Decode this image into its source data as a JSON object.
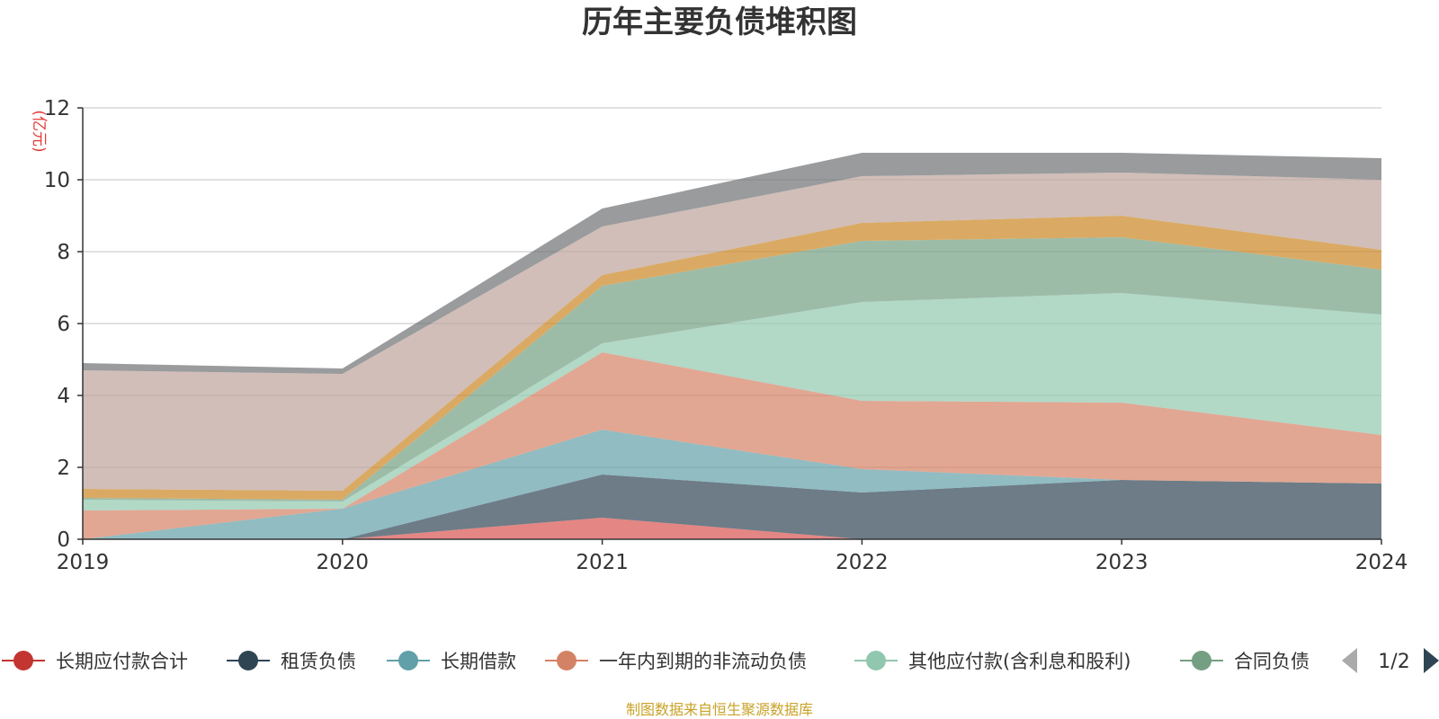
{
  "chart_data": {
    "type": "area",
    "stacked": true,
    "title": "历年主要负债堆积图",
    "unit_label": "(亿元)",
    "x": [
      "2019",
      "2020",
      "2021",
      "2022",
      "2023",
      "2024"
    ],
    "ylim": [
      0,
      12
    ],
    "yticks": [
      "0",
      "2",
      "4",
      "6",
      "8",
      "10",
      "12"
    ],
    "grid": true,
    "legend_position": "bottom",
    "series": [
      {
        "name": "长期应付款合计",
        "color": "#d9534f",
        "values": [
          0,
          0,
          0.6,
          0,
          0,
          0
        ]
      },
      {
        "name": "租赁负债",
        "color": "#2f4554",
        "values": [
          0,
          0,
          1.2,
          1.3,
          1.65,
          1.55
        ]
      },
      {
        "name": "长期借款",
        "color": "#61a0a8",
        "values": [
          0,
          0.85,
          1.25,
          0.65,
          0,
          0
        ]
      },
      {
        "name": "一年内到期的非流动负债",
        "color": "#d48265",
        "values": [
          0.8,
          0,
          2.15,
          1.9,
          2.15,
          1.35
        ]
      },
      {
        "name": "其他应付款(含利息和股利)",
        "color": "#91c7ae",
        "values": [
          0.3,
          0.2,
          0.25,
          2.75,
          3.05,
          3.35
        ]
      },
      {
        "name": "合同负债",
        "color": "#749f83",
        "values": [
          0.05,
          0.05,
          1.6,
          1.7,
          1.55,
          1.25
        ]
      },
      {
        "name": "",
        "color": "#ca8622",
        "values": [
          0.25,
          0.25,
          0.3,
          0.5,
          0.6,
          0.55
        ]
      },
      {
        "name": "",
        "color": "#bda29a",
        "values": [
          3.3,
          3.25,
          1.35,
          1.3,
          1.2,
          1.95
        ]
      },
      {
        "name": "",
        "color": "#6e7074",
        "values": [
          0.2,
          0.15,
          0.5,
          0.65,
          0.55,
          0.6
        ]
      }
    ],
    "legend_items": [
      {
        "name": "长期应付款合计",
        "color": "#c23531"
      },
      {
        "name": "租赁负债",
        "color": "#2f4554"
      },
      {
        "name": "长期借款",
        "color": "#61a0a8"
      },
      {
        "name": "一年内到期的非流动负债",
        "color": "#d48265"
      },
      {
        "name": "其他应付款(含利息和股利)",
        "color": "#91c7ae"
      },
      {
        "name": "合同负债",
        "color": "#749f83"
      }
    ],
    "legend_page": "1/2",
    "source": "制图数据来自恒生聚源数据库"
  }
}
